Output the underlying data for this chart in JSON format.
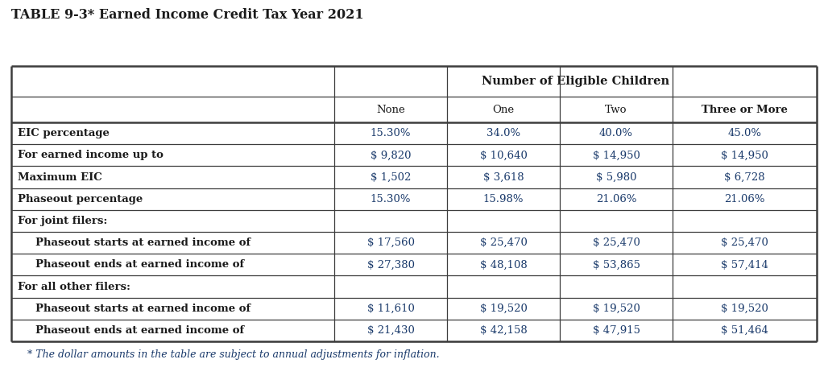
{
  "title": "TABLE 9-3* Earned Income Credit Tax Year 2021",
  "footnote": "* The dollar amounts in the table are subject to annual adjustments for inflation.",
  "header_group": "Number of Eligible Children",
  "col_headers": [
    "None",
    "One",
    "Two",
    "Three or More"
  ],
  "col_headers_bold": [
    false,
    false,
    false,
    true
  ],
  "rows": [
    {
      "label": "EIC percentage",
      "indent": false,
      "section": false,
      "values": [
        "15.30%",
        "34.0%",
        "40.0%",
        "45.0%"
      ]
    },
    {
      "label": "For earned income up to",
      "indent": false,
      "section": false,
      "values": [
        "$ 9,820",
        "$ 10,640",
        "$ 14,950",
        "$ 14,950"
      ]
    },
    {
      "label": "Maximum EIC",
      "indent": false,
      "section": false,
      "values": [
        "$ 1,502",
        "$ 3,618",
        "$ 5,980",
        "$ 6,728"
      ]
    },
    {
      "label": "Phaseout percentage",
      "indent": false,
      "section": false,
      "values": [
        "15.30%",
        "15.98%",
        "21.06%",
        "21.06%"
      ]
    },
    {
      "label": "For joint filers:",
      "indent": false,
      "section": true,
      "values": [
        "",
        "",
        "",
        ""
      ]
    },
    {
      "label": "Phaseout starts at earned income of",
      "indent": true,
      "section": false,
      "values": [
        "$ 17,560",
        "$ 25,470",
        "$ 25,470",
        "$ 25,470"
      ]
    },
    {
      "label": "Phaseout ends at earned income of",
      "indent": true,
      "section": false,
      "values": [
        "$ 27,380",
        "$ 48,108",
        "$ 53,865",
        "$ 57,414"
      ]
    },
    {
      "label": "For all other filers:",
      "indent": false,
      "section": true,
      "values": [
        "",
        "",
        "",
        ""
      ]
    },
    {
      "label": "Phaseout starts at earned income of",
      "indent": true,
      "section": false,
      "values": [
        "$ 11,610",
        "$ 19,520",
        "$ 19,520",
        "$ 19,520"
      ]
    },
    {
      "label": "Phaseout ends at earned income of",
      "indent": true,
      "section": false,
      "values": [
        "$ 21,430",
        "$ 42,158",
        "$ 47,915",
        "$ 51,464"
      ]
    }
  ],
  "bg_color": "#ffffff",
  "border_color": "#3d3d3d",
  "text_color": "#1a1a1a",
  "value_color": "#1a3a6b",
  "footnote_color": "#1a3a6b",
  "title_color": "#1a1a1a"
}
